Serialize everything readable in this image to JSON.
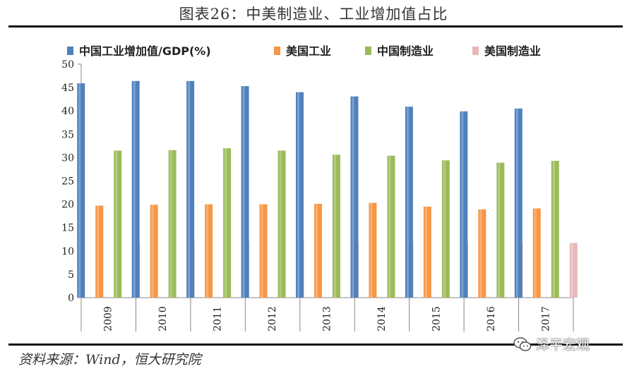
{
  "header": {
    "title": "图表26：中美制造业、工业增加值占比"
  },
  "footer": {
    "source": "资料来源：Wind，恒大研究院",
    "watermark": "泽平宏观"
  },
  "chart_data": {
    "type": "bar",
    "categories": [
      "2009",
      "2010",
      "2011",
      "2012",
      "2013",
      "2014",
      "2015",
      "2016",
      "2017"
    ],
    "series": [
      {
        "name": "中国工业增加值/GDP(%)",
        "color": "#4f81bd",
        "values": [
          45.9,
          46.4,
          46.4,
          45.3,
          44.0,
          43.1,
          40.9,
          39.9,
          40.5
        ]
      },
      {
        "name": "美国工业",
        "color": "#f79646",
        "values": [
          19.7,
          19.9,
          20.0,
          20.0,
          20.1,
          20.3,
          19.5,
          18.9,
          19.1
        ]
      },
      {
        "name": "中国制造业",
        "color": "#9bbb59",
        "values": [
          31.5,
          31.6,
          32.0,
          31.5,
          30.6,
          30.4,
          29.4,
          28.9,
          29.3
        ]
      },
      {
        "name": "美国制造业",
        "color": "#e6b9b8",
        "values": [
          11.8,
          12.1,
          12.1,
          12.1,
          12.0,
          12.0,
          12.0,
          11.7,
          11.7
        ]
      }
    ],
    "ylim": [
      0,
      50
    ],
    "yticks": [
      0,
      5,
      10,
      15,
      20,
      25,
      30,
      35,
      40,
      45,
      50
    ],
    "xlabel": "",
    "ylabel": "",
    "grid": false,
    "legend_position": "top"
  }
}
